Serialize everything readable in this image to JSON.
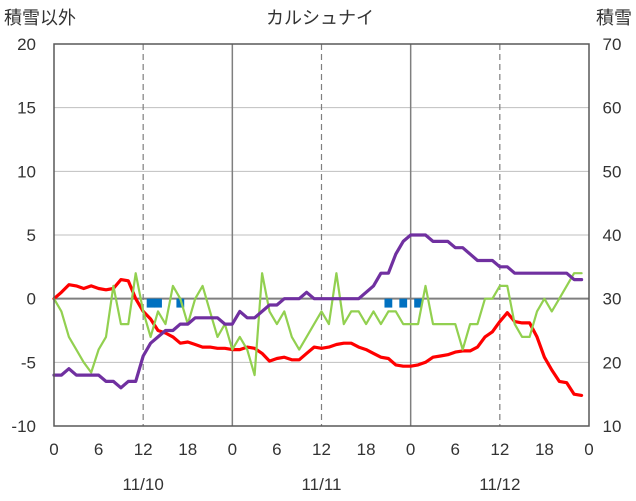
{
  "chart_data": {
    "type": "line",
    "title": "カルシュナイ",
    "left_axis_label": "積雪以外",
    "right_axis_label": "積雪",
    "ylim": [
      -10,
      20
    ],
    "y_ticks": [
      -10,
      -5,
      0,
      5,
      10,
      15,
      20
    ],
    "y2lim": [
      10,
      70
    ],
    "y2_ticks": [
      10,
      20,
      30,
      40,
      50,
      60,
      70
    ],
    "xlim": [
      0,
      72
    ],
    "x_ticks": [
      0,
      6,
      12,
      18,
      24,
      30,
      36,
      42,
      48,
      54,
      60,
      66,
      72
    ],
    "x_tick_labels": [
      "0",
      "6",
      "12",
      "18",
      "0",
      "6",
      "12",
      "18",
      "0",
      "6",
      "12",
      "18",
      "0"
    ],
    "date_labels": [
      {
        "x": 12,
        "label": "11/10"
      },
      {
        "x": 36,
        "label": "11/11"
      },
      {
        "x": 60,
        "label": "11/12"
      }
    ],
    "day_boundaries": [
      24,
      48
    ],
    "dashed_gridlines_x": [
      12,
      36,
      60
    ],
    "series": [
      {
        "color": "#ff0000",
        "axis": "left",
        "x": [
          0,
          1,
          2,
          3,
          4,
          5,
          6,
          7,
          8,
          9,
          10,
          11,
          12,
          13,
          14,
          15,
          16,
          17,
          18,
          19,
          20,
          21,
          22,
          23,
          24,
          25,
          26,
          27,
          28,
          29,
          30,
          31,
          32,
          33,
          34,
          35,
          36,
          37,
          38,
          39,
          40,
          41,
          42,
          43,
          44,
          45,
          46,
          47,
          48,
          49,
          50,
          51,
          52,
          53,
          54,
          55,
          56,
          57,
          58,
          59,
          60,
          61,
          62,
          63,
          64,
          65,
          66,
          67,
          68,
          69,
          70,
          71
        ],
        "values": [
          0,
          0.5,
          1.1,
          1,
          0.8,
          1,
          0.8,
          0.7,
          0.8,
          1.5,
          1.4,
          0,
          -1,
          -1.6,
          -2.5,
          -2.7,
          -3,
          -3.5,
          -3.4,
          -3.6,
          -3.8,
          -3.8,
          -3.9,
          -3.9,
          -4,
          -4,
          -3.8,
          -3.9,
          -4.3,
          -4.9,
          -4.7,
          -4.6,
          -4.8,
          -4.8,
          -4.3,
          -3.8,
          -3.9,
          -3.8,
          -3.6,
          -3.5,
          -3.5,
          -3.8,
          -4,
          -4.3,
          -4.6,
          -4.7,
          -5.2,
          -5.3,
          -5.3,
          -5.2,
          -5,
          -4.6,
          -4.5,
          -4.4,
          -4.2,
          -4.1,
          -4.1,
          -3.8,
          -3,
          -2.6,
          -1.8,
          -1.1,
          -1.8,
          -1.9,
          -1.9,
          -3,
          -4.6,
          -5.6,
          -6.5,
          -6.6,
          -7.5,
          -7.6
        ]
      },
      {
        "color": "#92d050",
        "axis": "left",
        "x": [
          0,
          1,
          2,
          3,
          4,
          5,
          6,
          7,
          8,
          9,
          10,
          11,
          12,
          13,
          14,
          15,
          16,
          17,
          18,
          19,
          20,
          21,
          22,
          23,
          24,
          25,
          26,
          27,
          28,
          29,
          30,
          31,
          32,
          33,
          34,
          35,
          36,
          37,
          38,
          39,
          40,
          41,
          42,
          43,
          44,
          45,
          46,
          47,
          48,
          49,
          50,
          51,
          52,
          53,
          54,
          55,
          56,
          57,
          58,
          59,
          60,
          61,
          62,
          63,
          64,
          65,
          66,
          67,
          68,
          69,
          70,
          71
        ],
        "values": [
          0,
          -1,
          -3,
          -4,
          -5,
          -5.8,
          -4,
          -3,
          1,
          -2,
          -2,
          2,
          -1,
          -3,
          -1,
          -2,
          1,
          0,
          -2,
          0,
          1,
          -1,
          -3,
          -2,
          -4,
          -3,
          -4,
          -6,
          2,
          -1,
          -2,
          -1,
          -3,
          -4,
          -3,
          -2,
          -1,
          -2,
          2,
          -2,
          -1,
          -1,
          -2,
          -1,
          -2,
          -1,
          -1,
          -2,
          -2,
          -2,
          1,
          -2,
          -2,
          -2,
          -2,
          -4,
          -2,
          -2,
          0,
          0,
          1,
          1,
          -2,
          -3,
          -3,
          -1,
          0,
          -1,
          0,
          1,
          2,
          2
        ]
      },
      {
        "color": "#7030a0",
        "axis": "right",
        "x": [
          0,
          1,
          2,
          3,
          4,
          5,
          6,
          7,
          8,
          9,
          10,
          11,
          12,
          13,
          14,
          15,
          16,
          17,
          18,
          19,
          20,
          21,
          22,
          23,
          24,
          25,
          26,
          27,
          28,
          29,
          30,
          31,
          32,
          33,
          34,
          35,
          36,
          37,
          38,
          39,
          40,
          41,
          42,
          43,
          44,
          45,
          46,
          47,
          48,
          49,
          50,
          51,
          52,
          53,
          54,
          55,
          56,
          57,
          58,
          59,
          60,
          61,
          62,
          63,
          64,
          65,
          66,
          67,
          68,
          69,
          70,
          71
        ],
        "values": [
          18,
          18,
          19,
          18,
          18,
          18,
          18,
          17,
          17,
          16,
          17,
          17,
          21,
          23,
          24,
          25,
          25,
          26,
          26,
          27,
          27,
          27,
          27,
          26,
          26,
          28,
          27,
          27,
          28,
          29,
          29,
          30,
          30,
          30,
          31,
          30,
          30,
          30,
          30,
          30,
          30,
          30,
          31,
          32,
          34,
          34,
          37,
          39,
          40,
          40,
          40,
          39,
          39,
          39,
          38,
          38,
          37,
          36,
          36,
          36,
          35,
          35,
          34,
          34,
          34,
          34,
          34,
          34,
          34,
          34,
          33,
          33
        ]
      }
    ],
    "precipitation_bars": {
      "color": "#0070c0",
      "x": [
        13,
        14,
        17,
        45,
        47,
        49
      ],
      "values": [
        0.7,
        0.7,
        0.7,
        0.7,
        0.7,
        0.7
      ]
    }
  }
}
